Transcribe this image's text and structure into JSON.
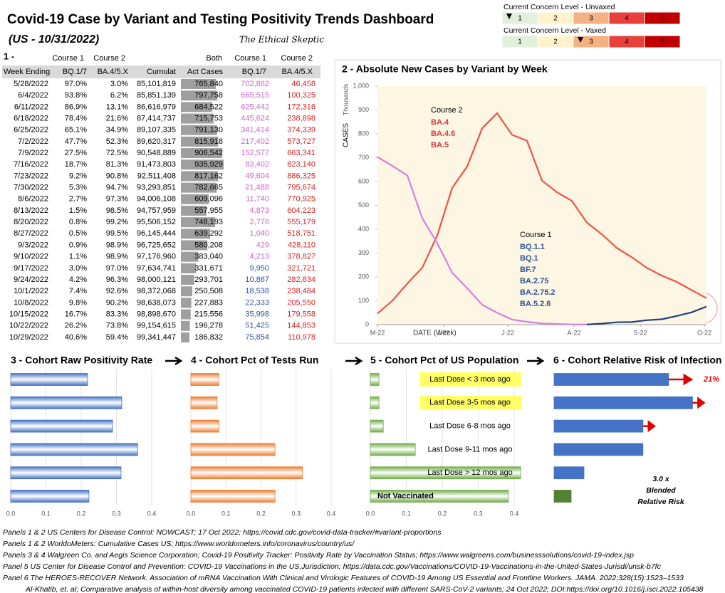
{
  "title": "Covid-19 Case by Variant and Testing Positivity Trends Dashboard",
  "subtitle": "(US - 10/31/2022)",
  "brand": "The Ethical Skeptic",
  "concern": {
    "levels": [
      1,
      2,
      3,
      4,
      5
    ],
    "level_colors": [
      "#e2efda",
      "#fff2cc",
      "#f4b183",
      "#e8403a",
      "#c00000"
    ],
    "rows": [
      {
        "label": "Current Concern Level - Unvaxed",
        "level": 1
      },
      {
        "label": "Current Concern Level - Vaxed",
        "level": 3
      }
    ]
  },
  "table": {
    "header_top": [
      "1 -",
      "Course 1",
      "Course 2",
      "Both",
      "Course 1",
      "Course 2"
    ],
    "header": [
      "Week Ending",
      "BQ.1/7",
      "BA.4/5.X",
      "Cumulat",
      "Act Cases",
      "BQ.1/7",
      "BA.4/5.X"
    ],
    "week": [
      "5/28/2022",
      "6/4/2022",
      "6/11/2022",
      "6/18/2022",
      "6/25/2022",
      "7/2/2022",
      "7/9/2022",
      "7/16/2022",
      "7/23/2022",
      "7/30/2022",
      "8/6/2022",
      "8/13/2022",
      "8/20/2022",
      "8/27/2022",
      "9/3/2022",
      "9/10/2022",
      "9/17/2022",
      "9/24/2022",
      "10/1/2022",
      "10/8/2022",
      "10/15/2022",
      "10/22/2022",
      "10/29/2022"
    ],
    "course1_pct": [
      "97.0%",
      "93.8%",
      "86.9%",
      "78.4%",
      "65.1%",
      "47.7%",
      "27.5%",
      "18.7%",
      "9.2%",
      "5.3%",
      "2.7%",
      "1.5%",
      "0.8%",
      "0.5%",
      "0.9%",
      "1.1%",
      "3.0%",
      "4.2%",
      "7.4%",
      "9.8%",
      "16.7%",
      "26.2%",
      "40.6%"
    ],
    "course2_pct": [
      "3.0%",
      "6.2%",
      "13.1%",
      "21.6%",
      "34.9%",
      "52.3%",
      "72.5%",
      "81.3%",
      "90.8%",
      "94.7%",
      "97.3%",
      "98.5%",
      "99.2%",
      "99.5%",
      "98.9%",
      "98.9%",
      "97.0%",
      "96.3%",
      "92.6%",
      "90.2%",
      "83.3%",
      "73.8%",
      "59.4%"
    ],
    "cumulat": [
      "85,101,819",
      "85,851,139",
      "86,616,979",
      "87,414,737",
      "89,107,335",
      "89,620,317",
      "90,548,889",
      "91,473,803",
      "92,511,408",
      "93,293,851",
      "94,006,108",
      "94,757,959",
      "95,506,152",
      "96,145,444",
      "96,725,652",
      "97,176,960",
      "97,634,741",
      "98,000,121",
      "98,372,068",
      "98,638,073",
      "98,898,670",
      "99,154,615",
      "99,341,447"
    ],
    "act_cases": {
      "values": [
        765840,
        797758,
        684522,
        715753,
        791130,
        815918,
        906542,
        935929,
        817162,
        782665,
        609096,
        557955,
        748193,
        639292,
        580208,
        383040,
        331671,
        293701,
        250508,
        227883,
        215556,
        196278,
        186832
      ],
      "value_labels": [
        "765,840",
        "797,758",
        "684,522",
        "715,753",
        "791,130",
        "815,918",
        "906,542",
        "935,929",
        "817,162",
        "782,665",
        "609,096",
        "557,955",
        "748,193",
        "639,292",
        "580,208",
        "383,040",
        "331,671",
        "293,701",
        "250,508",
        "227,883",
        "215,556",
        "196,278",
        "186,832"
      ],
      "color": "#7f7f7f"
    },
    "course1_cases": [
      "702,862",
      "665,515",
      "625,442",
      "445,624",
      "341,414",
      "217,402",
      "152,577",
      "83,402",
      "49,604",
      "21,488",
      "11,740",
      "4,873",
      "2,776",
      "1,040",
      "429",
      "4,213",
      "9,950",
      "10,867",
      "18,538",
      "22,333",
      "35,998",
      "51,425",
      "75,854"
    ],
    "course1_colors": [
      "#cc66cc",
      "#cc66cc",
      "#cc66cc",
      "#cc66cc",
      "#cc66cc",
      "#cc66cc",
      "#cc66cc",
      "#cc66cc",
      "#cc66cc",
      "#cc66cc",
      "#cc66cc",
      "#cc66cc",
      "#cc66cc",
      "#cc66cc",
      "#cc66cc",
      "#cc66cc",
      "#2f5597",
      "#2f5597",
      "#2f5597",
      "#2f5597",
      "#2f5597",
      "#2f5597",
      "#2f5597"
    ],
    "course2_cases": [
      "46,458",
      "100,325",
      "172,316",
      "238,898",
      "374,339",
      "573,727",
      "663,341",
      "823,140",
      "886,325",
      "795,674",
      "770,925",
      "604,223",
      "555,179",
      "518,751",
      "428,110",
      "378,827",
      "321,721",
      "282,834",
      "238,484",
      "205,550",
      "179,558",
      "144,853",
      "110,978"
    ],
    "course2_color": "#e02020"
  },
  "chart_data": [
    {
      "type": "line",
      "title": "2 - Absolute New Cases by Variant by Week",
      "ylabel": "CASES",
      "yunit": "Thousands",
      "xlabel": "DATE (Week)",
      "x": [
        "2022-05-28",
        "2022-06-04",
        "2022-06-11",
        "2022-06-18",
        "2022-06-25",
        "2022-07-02",
        "2022-07-09",
        "2022-07-16",
        "2022-07-23",
        "2022-07-30",
        "2022-08-06",
        "2022-08-13",
        "2022-08-20",
        "2022-08-27",
        "2022-09-03",
        "2022-09-10",
        "2022-09-17",
        "2022-09-24",
        "2022-10-01",
        "2022-10-08",
        "2022-10-15",
        "2022-10-22",
        "2022-10-29"
      ],
      "xlim": [
        "2022-05-28",
        "2022-10-29"
      ],
      "xticks": [
        {
          "value": "2022-05-28",
          "label": "M-22"
        },
        {
          "value": "2022-06-28",
          "label": "J-22"
        },
        {
          "value": "2022-07-28",
          "label": "J-22"
        },
        {
          "value": "2022-08-28",
          "label": "A-22"
        },
        {
          "value": "2022-09-28",
          "label": "S-22"
        },
        {
          "value": "2022-10-28",
          "label": "O-22"
        }
      ],
      "ylim": [
        0,
        1000
      ],
      "yticks": [
        0,
        100,
        200,
        300,
        400,
        500,
        600,
        700,
        800,
        900,
        {
          "value": 1000,
          "label": "1,000"
        }
      ],
      "background": "#fdf6e3",
      "series": [
        {
          "color": "#f0524a",
          "values": [
            46.458,
            100.325,
            172.316,
            238.898,
            374.339,
            573.727,
            663.341,
            823.14,
            886.325,
            795.674,
            770.925,
            604.223,
            555.179,
            518.751,
            428.11,
            378.827,
            321.721,
            282.834,
            238.484,
            205.55,
            179.558,
            144.853,
            110.978
          ]
        },
        {
          "color": "#d77fe0",
          "values": [
            702.862,
            665.515,
            625.442,
            445.624,
            341.414,
            217.402,
            152.577,
            83.402,
            49.604,
            21.488,
            11.74,
            4.873,
            2.776,
            1.04,
            0.429,
            4.213,
            null,
            null,
            null,
            null,
            null,
            null,
            null
          ]
        },
        {
          "color": "#1f3f7a",
          "values": [
            null,
            null,
            null,
            null,
            null,
            null,
            null,
            null,
            null,
            null,
            null,
            null,
            null,
            null,
            0.429,
            4.213,
            9.95,
            10.867,
            18.538,
            22.333,
            35.998,
            51.425,
            75.854
          ]
        }
      ],
      "annotations": [
        {
          "title": "Course 2",
          "color": "#e03a3a",
          "lines": [
            "BA.4",
            "BA.4.6",
            "BA.5"
          ]
        },
        {
          "title": "Course 1",
          "color": "#2f5597",
          "lines": [
            "BQ.1.1",
            "BQ.1",
            "BF.7",
            "BA.2.75",
            "BA.2.75.2",
            "BA.5.2.6"
          ]
        }
      ]
    },
    {
      "type": "hbar",
      "title": "3 - Cohort Raw Positivity Rate",
      "color": "#4472c4",
      "values": [
        0.218,
        0.315,
        0.289,
        0.36,
        0.313,
        0.222
      ],
      "xlim": [
        0,
        0.4
      ],
      "xticks": [
        {
          "value": 0,
          "label": "0.0"
        },
        0.1,
        0.2,
        0.3,
        0.4
      ],
      "grid": true
    },
    {
      "type": "hbar",
      "title": "4 - Cohort Pct of Tests Run",
      "color": "#ed7d31",
      "values": [
        0.08,
        0.075,
        0.08,
        0.24,
        0.318,
        0.24
      ],
      "xlim": [
        0,
        0.4
      ],
      "xticks": [
        {
          "value": 0,
          "label": "0.0"
        },
        0.1,
        0.2,
        0.3,
        0.4
      ],
      "grid": true
    },
    {
      "type": "hbar",
      "title": "5 - Cohort Pct of US Population",
      "color": "#70ad47",
      "categories": [
        "Last Dose < 3 mos ago",
        "Last Dose 3-5 mos ago",
        "Last Dose 6-8 mos ago",
        "Last Dose 9-11 mos ago",
        "Last Dose > 12 mos ago",
        "Not Vaccinated"
      ],
      "highlighted": [
        true,
        true,
        false,
        false,
        false,
        false
      ],
      "highlight_color": "#ffff66",
      "values": [
        0.024,
        0.024,
        0.036,
        0.125,
        0.418,
        0.384
      ],
      "xlim": [
        0,
        0.4
      ],
      "xticks": [
        {
          "value": 0,
          "label": "0.0"
        },
        0.1,
        0.2,
        0.3,
        0.4
      ],
      "grid": true
    },
    {
      "type": "hbar",
      "title": "6 - Cohort Relative Risk of Infection",
      "colors": [
        "#4472c4",
        "#4472c4",
        "#4472c4",
        "#4472c4",
        "#4472c4",
        "#548235"
      ],
      "values": [
        6.7,
        8.1,
        5.2,
        5.2,
        1.75,
        1.0
      ],
      "xlim": [
        0,
        9
      ],
      "grid": false,
      "arrow_label": "21%",
      "note": [
        "3.0 x",
        "Blended",
        "Relative Risk"
      ]
    }
  ],
  "footnotes": [
    "Panels 1 & 2  US Centers for Disease Control: NOWCAST; 17 Oct 2022; https://covid.cdc.gov/covid-data-tracker/#variant-proportions",
    "Panels 1 & 2  WorldoMeters: Cumulative Cases US; https://www.worldometers.info/coronavirus/country/us/",
    "Panels 3 & 4  Walgreen Co. and Aegis Science Corporation; Covid-19 Positivity Tracker: Positivity Rate by Vaccination Status; https://www.walgreens.com/businesssolutions/covid-19-index.jsp",
    "Panel 5  US Center for Disease Control and Prevention: COVID-19 Vaccinations in the US,Jurisdiction; https://data.cdc.gov/Vaccinations/COVID-19-Vaccinations-in-the-United-States-Jurisdi/unsk-b7fc",
    "Panel 6  The HEROES-RECOVER Network. Association of mRNA Vaccination With Clinical and Virologic Features of COVID-19 Among US Essential and Frontline Workers. JAMA. 2022;328(15):1523–1533",
    "Al-Khatib, et. al; Comparative analysis of within-host diversity among vaccinated COVID-19 patients infected with different SARS-CoV-2 variants; 24 Oct 2022; DOI:https://doi.org/10.1016/j.isci.2022.105438"
  ]
}
